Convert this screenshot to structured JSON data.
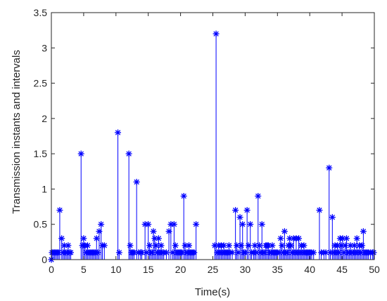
{
  "chart_data": {
    "type": "stem",
    "xlabel": "Time(s)",
    "ylabel": "Transmission instants and intervals",
    "xlim": [
      0,
      50
    ],
    "ylim": [
      0,
      3.5
    ],
    "xticks": [
      "0",
      "5",
      "10",
      "15",
      "20",
      "25",
      "30",
      "35",
      "40",
      "45",
      "50"
    ],
    "yticks": [
      "0",
      "0.5",
      "1",
      "1.5",
      "2",
      "2.5",
      "3",
      "3.5"
    ],
    "grid": false,
    "marker": "asterisk",
    "color": "#0000ff",
    "series": [
      {
        "points": [
          [
            0.0,
            0.0
          ],
          [
            0.1,
            0.1
          ],
          [
            0.3,
            0.1
          ],
          [
            0.5,
            0.1
          ],
          [
            0.7,
            0.1
          ],
          [
            0.9,
            0.1
          ],
          [
            1.1,
            0.1
          ],
          [
            1.3,
            0.7
          ],
          [
            1.6,
            0.3
          ],
          [
            1.8,
            0.1
          ],
          [
            2.0,
            0.2
          ],
          [
            2.2,
            0.1
          ],
          [
            2.4,
            0.1
          ],
          [
            2.6,
            0.2
          ],
          [
            2.8,
            0.1
          ],
          [
            3.0,
            0.1
          ],
          [
            4.6,
            1.5
          ],
          [
            4.8,
            0.2
          ],
          [
            5.0,
            0.3
          ],
          [
            5.2,
            0.2
          ],
          [
            5.4,
            0.1
          ],
          [
            5.6,
            0.2
          ],
          [
            5.8,
            0.1
          ],
          [
            6.0,
            0.1
          ],
          [
            6.2,
            0.1
          ],
          [
            6.4,
            0.1
          ],
          [
            6.6,
            0.1
          ],
          [
            6.8,
            0.1
          ],
          [
            7.0,
            0.3
          ],
          [
            7.2,
            0.1
          ],
          [
            7.4,
            0.4
          ],
          [
            7.7,
            0.5
          ],
          [
            7.9,
            0.2
          ],
          [
            8.2,
            0.2
          ],
          [
            10.3,
            1.8
          ],
          [
            10.5,
            0.1
          ],
          [
            12.0,
            1.5
          ],
          [
            12.2,
            0.2
          ],
          [
            12.4,
            0.1
          ],
          [
            12.6,
            0.1
          ],
          [
            12.8,
            0.1
          ],
          [
            13.2,
            1.1
          ],
          [
            13.5,
            0.1
          ],
          [
            13.8,
            0.1
          ],
          [
            14.0,
            0.1
          ],
          [
            14.5,
            0.5
          ],
          [
            14.7,
            0.1
          ],
          [
            15.0,
            0.5
          ],
          [
            15.2,
            0.2
          ],
          [
            15.4,
            0.1
          ],
          [
            15.6,
            0.1
          ],
          [
            15.8,
            0.4
          ],
          [
            16.0,
            0.3
          ],
          [
            16.2,
            0.2
          ],
          [
            16.4,
            0.1
          ],
          [
            16.6,
            0.3
          ],
          [
            16.8,
            0.1
          ],
          [
            17.0,
            0.2
          ],
          [
            17.2,
            0.1
          ],
          [
            17.4,
            0.1
          ],
          [
            17.8,
            0.1
          ],
          [
            18.2,
            0.4
          ],
          [
            18.5,
            0.5
          ],
          [
            18.8,
            0.1
          ],
          [
            19.0,
            0.5
          ],
          [
            19.2,
            0.2
          ],
          [
            19.4,
            0.1
          ],
          [
            19.6,
            0.1
          ],
          [
            19.8,
            0.1
          ],
          [
            20.0,
            0.1
          ],
          [
            20.2,
            0.1
          ],
          [
            20.5,
            0.9
          ],
          [
            20.7,
            0.2
          ],
          [
            20.9,
            0.1
          ],
          [
            21.1,
            0.1
          ],
          [
            21.3,
            0.2
          ],
          [
            21.5,
            0.1
          ],
          [
            21.7,
            0.1
          ],
          [
            21.9,
            0.1
          ],
          [
            22.1,
            0.1
          ],
          [
            22.4,
            0.5
          ],
          [
            25.3,
            0.2
          ],
          [
            25.5,
            3.2
          ],
          [
            25.7,
            0.1
          ],
          [
            25.9,
            0.2
          ],
          [
            26.1,
            0.1
          ],
          [
            26.3,
            0.2
          ],
          [
            26.5,
            0.1
          ],
          [
            26.7,
            0.2
          ],
          [
            26.9,
            0.1
          ],
          [
            27.1,
            0.1
          ],
          [
            27.3,
            0.1
          ],
          [
            27.5,
            0.2
          ],
          [
            27.7,
            0.1
          ],
          [
            28.0,
            0.1
          ],
          [
            28.5,
            0.7
          ],
          [
            28.7,
            0.2
          ],
          [
            28.9,
            0.1
          ],
          [
            29.2,
            0.6
          ],
          [
            29.4,
            0.2
          ],
          [
            29.6,
            0.5
          ],
          [
            29.8,
            0.1
          ],
          [
            30.0,
            0.1
          ],
          [
            30.3,
            0.7
          ],
          [
            30.5,
            0.2
          ],
          [
            30.8,
            0.5
          ],
          [
            31.0,
            0.1
          ],
          [
            31.3,
            0.1
          ],
          [
            31.5,
            0.2
          ],
          [
            31.7,
            0.1
          ],
          [
            32.0,
            0.9
          ],
          [
            32.2,
            0.2
          ],
          [
            32.4,
            0.1
          ],
          [
            32.6,
            0.5
          ],
          [
            32.8,
            0.1
          ],
          [
            33.0,
            0.1
          ],
          [
            33.2,
            0.2
          ],
          [
            33.4,
            0.2
          ],
          [
            33.6,
            0.2
          ],
          [
            33.8,
            0.1
          ],
          [
            34.0,
            0.1
          ],
          [
            34.2,
            0.2
          ],
          [
            34.4,
            0.1
          ],
          [
            34.6,
            0.1
          ],
          [
            34.8,
            0.1
          ],
          [
            35.0,
            0.1
          ],
          [
            35.3,
            0.1
          ],
          [
            35.5,
            0.3
          ],
          [
            35.7,
            0.2
          ],
          [
            35.9,
            0.1
          ],
          [
            36.1,
            0.4
          ],
          [
            36.3,
            0.1
          ],
          [
            36.5,
            0.1
          ],
          [
            36.7,
            0.2
          ],
          [
            36.9,
            0.3
          ],
          [
            37.1,
            0.2
          ],
          [
            37.3,
            0.1
          ],
          [
            37.5,
            0.3
          ],
          [
            37.7,
            0.1
          ],
          [
            37.9,
            0.3
          ],
          [
            38.1,
            0.1
          ],
          [
            38.3,
            0.3
          ],
          [
            38.5,
            0.1
          ],
          [
            38.7,
            0.2
          ],
          [
            38.9,
            0.1
          ],
          [
            39.1,
            0.2
          ],
          [
            39.3,
            0.1
          ],
          [
            39.5,
            0.1
          ],
          [
            39.7,
            0.1
          ],
          [
            39.9,
            0.1
          ],
          [
            40.1,
            0.1
          ],
          [
            40.3,
            0.1
          ],
          [
            40.6,
            0.1
          ],
          [
            41.5,
            0.7
          ],
          [
            41.8,
            0.1
          ],
          [
            42.2,
            0.1
          ],
          [
            42.5,
            0.1
          ],
          [
            43.0,
            1.3
          ],
          [
            43.2,
            0.1
          ],
          [
            43.5,
            0.6
          ],
          [
            43.7,
            0.1
          ],
          [
            43.9,
            0.2
          ],
          [
            44.1,
            0.1
          ],
          [
            44.3,
            0.2
          ],
          [
            44.5,
            0.1
          ],
          [
            44.7,
            0.3
          ],
          [
            44.9,
            0.2
          ],
          [
            45.1,
            0.3
          ],
          [
            45.3,
            0.1
          ],
          [
            45.5,
            0.2
          ],
          [
            45.7,
            0.3
          ],
          [
            45.9,
            0.1
          ],
          [
            46.1,
            0.1
          ],
          [
            46.3,
            0.2
          ],
          [
            46.5,
            0.1
          ],
          [
            46.7,
            0.1
          ],
          [
            46.9,
            0.2
          ],
          [
            47.1,
            0.1
          ],
          [
            47.3,
            0.3
          ],
          [
            47.5,
            0.1
          ],
          [
            47.7,
            0.2
          ],
          [
            47.9,
            0.1
          ],
          [
            48.1,
            0.2
          ],
          [
            48.3,
            0.4
          ],
          [
            48.5,
            0.1
          ],
          [
            48.7,
            0.1
          ],
          [
            48.9,
            0.1
          ],
          [
            49.1,
            0.1
          ],
          [
            49.4,
            0.1
          ],
          [
            49.7,
            0.1
          ],
          [
            49.9,
            0.1
          ]
        ]
      }
    ]
  }
}
